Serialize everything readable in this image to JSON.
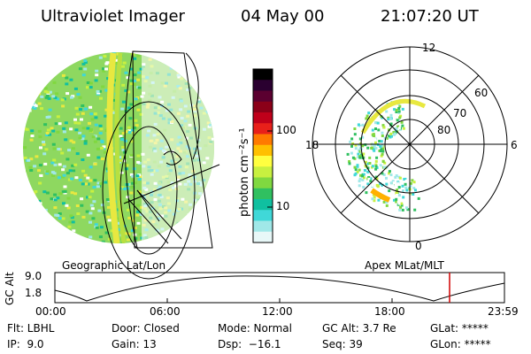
{
  "header": {
    "instrument": "Ultraviolet Imager",
    "date": "04 May 00",
    "time": "21:07:20 UT"
  },
  "colorbar": {
    "unit_label": "photon cm⁻²s⁻¹",
    "ticks": [
      "100",
      "10"
    ],
    "colors": [
      "#000000",
      "#2a0030",
      "#5b0030",
      "#8b0018",
      "#c0001a",
      "#e8201a",
      "#ff7a00",
      "#ffc000",
      "#ffff40",
      "#c8f040",
      "#80d840",
      "#30c060",
      "#10c0a0",
      "#40d8d8",
      "#a0e8e8",
      "#e8f8f8"
    ]
  },
  "polar_plot": {
    "mlt_labels": [
      "12",
      "18",
      "6",
      "0"
    ],
    "lat_labels": [
      "60",
      "70",
      "80"
    ]
  },
  "map_labels": {
    "left": "Geographic Lat/Lon",
    "right": "Apex MLat/MLT"
  },
  "timeline": {
    "axis_label": "GC Alt",
    "y_ticks": [
      "9.0",
      "1.8"
    ],
    "x_ticks": [
      "00:00",
      "06:00",
      "12:00",
      "18:00",
      "23:59"
    ]
  },
  "status": {
    "flt": "Flt: LBHL",
    "ip": "IP:  9.0",
    "door": "Door: Closed",
    "gain": "Gain: 13",
    "mode": "Mode: Normal",
    "dsp": "Dsp:  −16.1",
    "gc_alt": "GC Alt: 3.7 Re",
    "seq": "Seq: 39",
    "glat": "GLat: *****",
    "glon": "GLon: *****"
  }
}
